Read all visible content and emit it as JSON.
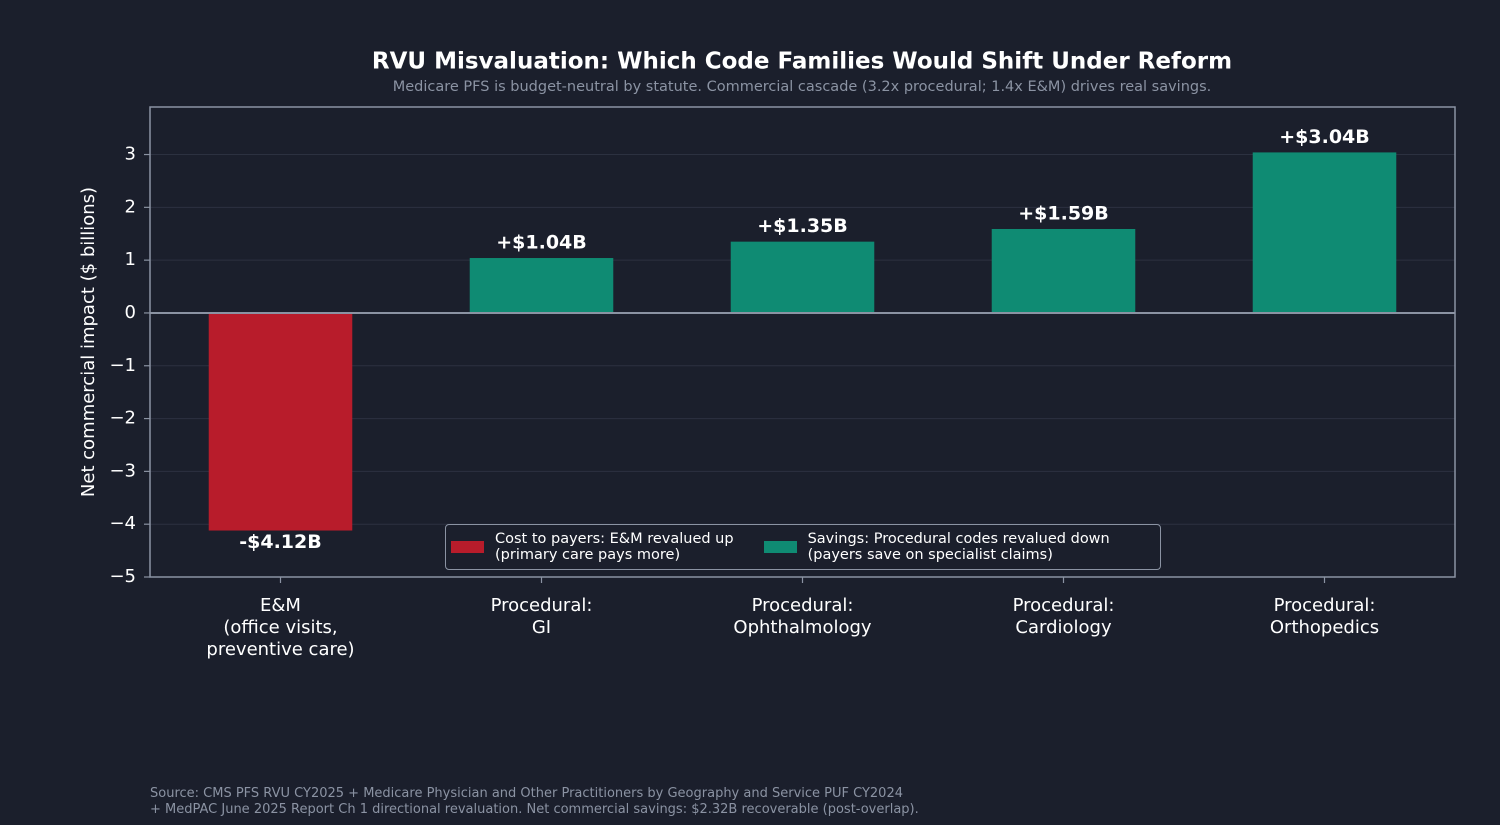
{
  "chart_data": {
    "type": "bar",
    "title": "RVU Misvaluation: Which Code Families Would Shift Under Reform",
    "subtitle": "Medicare PFS is budget-neutral by statute. Commercial cascade (3.2x procedural; 1.4x E&M) drives real savings.",
    "y_label": "Net commercial impact ($ billions)",
    "categories": [
      "E&M\n(office visits,\npreventive care)",
      "Procedural:\nGI",
      "Procedural:\nOphthalmology",
      "Procedural:\nCardiology",
      "Procedural:\nOrthopedics"
    ],
    "values": [
      -4.12,
      1.04,
      1.35,
      1.59,
      3.04
    ],
    "value_labels": [
      "-$4.12B",
      "+$1.04B",
      "+$1.35B",
      "+$1.59B",
      "+$3.04B"
    ],
    "colors": [
      "#b81c2b",
      "#0f8b73",
      "#0f8b73",
      "#0f8b73",
      "#0f8b73"
    ],
    "legend": [
      {
        "label": "Cost to payers: E&M revalued up\n(primary care pays more)",
        "color": "#b81c2b"
      },
      {
        "label": "Savings: Procedural codes revalued down\n(payers save on specialist claims)",
        "color": "#0f8b73"
      }
    ],
    "ylim": [
      -5,
      3.9
    ],
    "yticks": [
      {
        "value": -5,
        "label": "−5"
      },
      {
        "value": -4,
        "label": "−4"
      },
      {
        "value": -3,
        "label": "−3"
      },
      {
        "value": -2,
        "label": "−2"
      },
      {
        "value": -1,
        "label": "−1"
      },
      0,
      1,
      2,
      3
    ],
    "grid": true,
    "source": "Source: CMS PFS RVU CY2025 + Medicare Physician and Other Practitioners by Geography and Service PUF CY2024\n+ MedPAC June 2025 Report Ch 1 directional revaluation. Net commercial savings: $2.32B recoverable (post-overlap)."
  }
}
